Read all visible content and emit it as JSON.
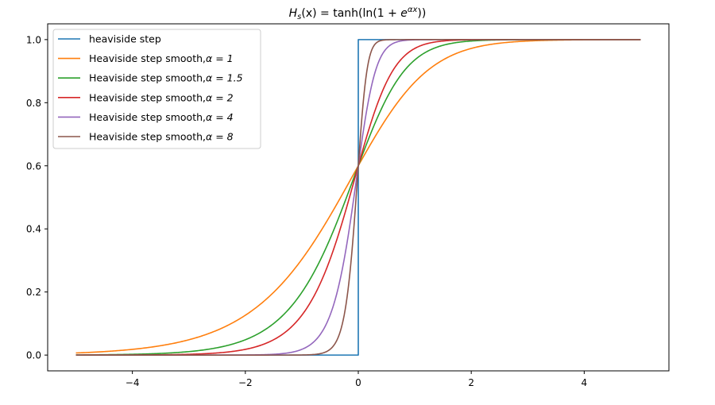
{
  "chart_data": {
    "type": "line",
    "title": "H_s(x) = tanh(ln(1 + e^{αx}))",
    "title_parts": {
      "main": "H",
      "sub": "s",
      "middle": "(x) = tanh(ln(1 + ",
      "base": "e",
      "sup": "αx",
      "tail": "))"
    },
    "xlabel": "",
    "ylabel": "",
    "xlim": [
      -5.5,
      5.5
    ],
    "ylim": [
      -0.05,
      1.05
    ],
    "xticks": [
      -4,
      -2,
      0,
      2,
      4
    ],
    "xtick_labels": [
      "−4",
      "−2",
      "0",
      "2",
      "4"
    ],
    "yticks": [
      0.0,
      0.2,
      0.4,
      0.6,
      0.8,
      1.0
    ],
    "ytick_labels": [
      "0.0",
      "0.2",
      "0.4",
      "0.6",
      "0.8",
      "1.0"
    ],
    "grid": false,
    "legend_position": "top-left",
    "x_range": [
      -5,
      5
    ],
    "series": [
      {
        "name": "heaviside step",
        "label": "heaviside step",
        "kind": "step",
        "color": "#1f77b4"
      },
      {
        "name": "Heaviside step smooth,α = 1",
        "label": "Heaviside step smooth,",
        "alpha_text": "α = 1",
        "kind": "smooth",
        "alpha": 1,
        "color": "#ff7f0e"
      },
      {
        "name": "Heaviside step smooth,α = 1.5",
        "label": "Heaviside step smooth,",
        "alpha_text": "α = 1.5",
        "kind": "smooth",
        "alpha": 1.5,
        "color": "#2ca02c"
      },
      {
        "name": "Heaviside step smooth,α = 2",
        "label": "Heaviside step smooth,",
        "alpha_text": "α = 2",
        "kind": "smooth",
        "alpha": 2,
        "color": "#d62728"
      },
      {
        "name": "Heaviside step smooth,α = 4",
        "label": "Heaviside step smooth,",
        "alpha_text": "α = 4",
        "kind": "smooth",
        "alpha": 4,
        "color": "#9467bd"
      },
      {
        "name": "Heaviside step smooth,α = 8",
        "label": "Heaviside step smooth,",
        "alpha_text": "α = 8",
        "kind": "smooth",
        "alpha": 8,
        "color": "#8c564b"
      }
    ]
  }
}
